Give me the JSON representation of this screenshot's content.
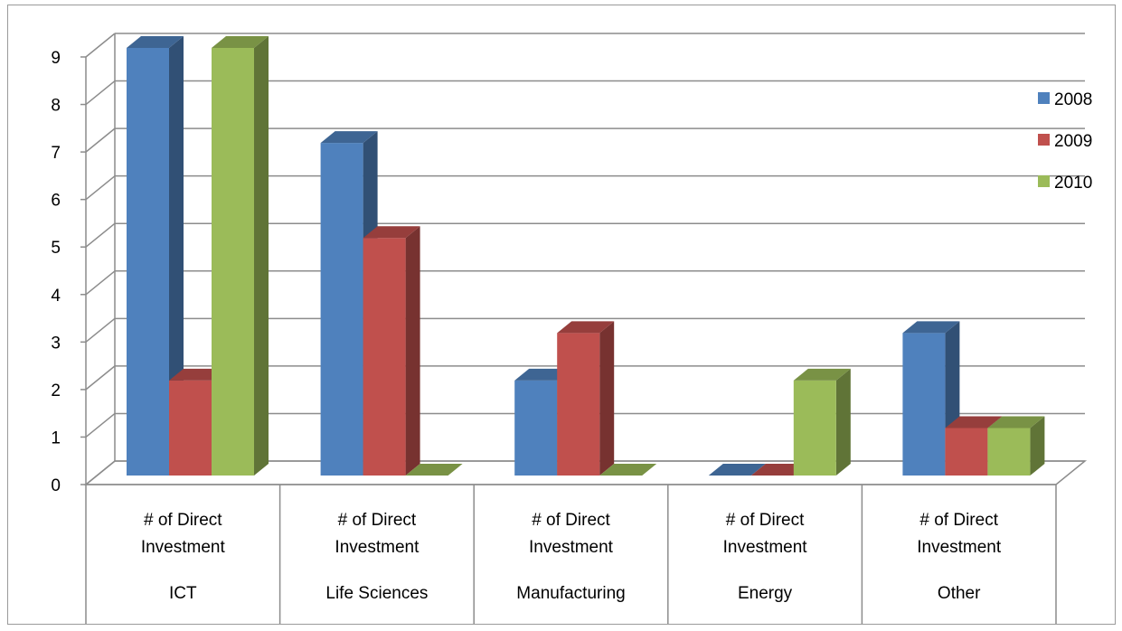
{
  "chart_data": {
    "type": "bar",
    "style": "3d-clustered-column",
    "title": "",
    "xlabel": "",
    "ylabel": "",
    "ylim": [
      0,
      9
    ],
    "yticks": [
      0,
      1,
      2,
      3,
      4,
      5,
      6,
      7,
      8,
      9
    ],
    "grid": true,
    "legend_position": "right",
    "categories": [
      {
        "sub": "# of Direct Investment",
        "name": "ICT"
      },
      {
        "sub": "# of Direct Investment",
        "name": "Life Sciences"
      },
      {
        "sub": "# of Direct Investment",
        "name": "Manufacturing"
      },
      {
        "sub": "# of Direct Investment",
        "name": "Energy"
      },
      {
        "sub": "# of Direct Investment",
        "name": "Other"
      }
    ],
    "series": [
      {
        "name": "2008",
        "color": "#4F81BD",
        "values": [
          9,
          7,
          2,
          0,
          3
        ]
      },
      {
        "name": "2009",
        "color": "#C0504D",
        "values": [
          2,
          5,
          3,
          0,
          1
        ]
      },
      {
        "name": "2010",
        "color": "#9BBB59",
        "values": [
          9,
          0,
          0,
          2,
          1
        ]
      }
    ]
  }
}
